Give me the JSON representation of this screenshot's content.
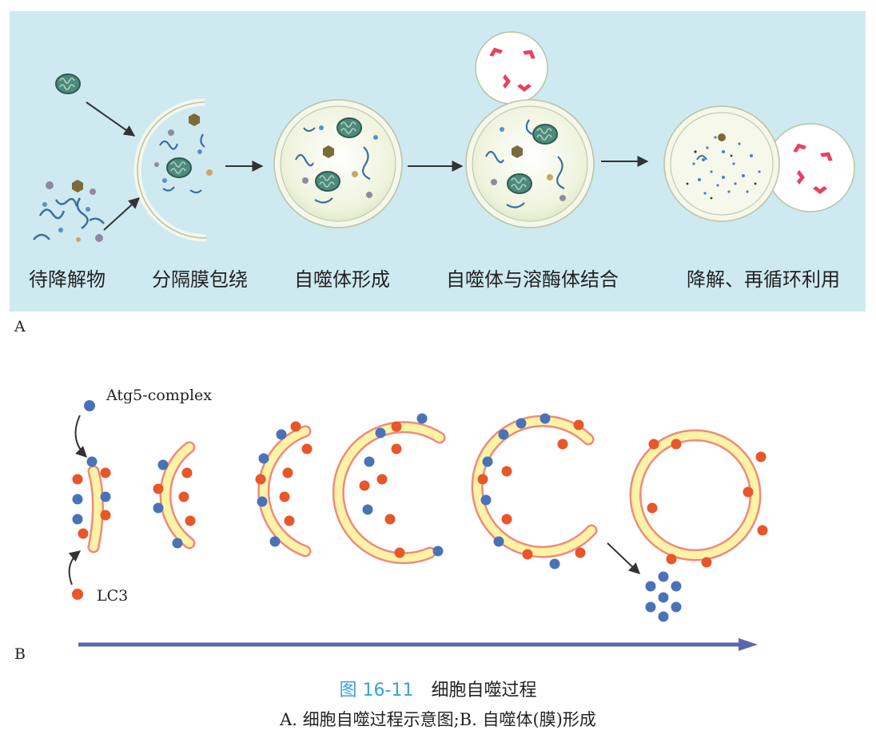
{
  "panel_a": {
    "letter": "A",
    "stages": [
      {
        "label": "待降解物"
      },
      {
        "label": "分隔膜包绕"
      },
      {
        "label": "自噬体形成"
      },
      {
        "label": "自噬体与溶酶体结合"
      },
      {
        "label": "降解、再循环利用"
      }
    ]
  },
  "panel_b": {
    "letter": "B",
    "markers": {
      "atg5": {
        "label": "Atg5-complex",
        "color": "#4a72b8"
      },
      "lc3": {
        "label": "LC3",
        "color": "#e8562a"
      }
    }
  },
  "caption": {
    "figure_number": "图 16-11",
    "title": "细胞自噬过程",
    "subtitle": "A. 细胞自噬过程示意图;B. 自噬体(膜)形成"
  },
  "colors": {
    "panel_bg": "#cfe9f1",
    "membrane_fill": "#fdf3a6",
    "membrane_edge": "#f08a7c",
    "arrow": "#5b66b2",
    "cargo": "#e8415e"
  }
}
